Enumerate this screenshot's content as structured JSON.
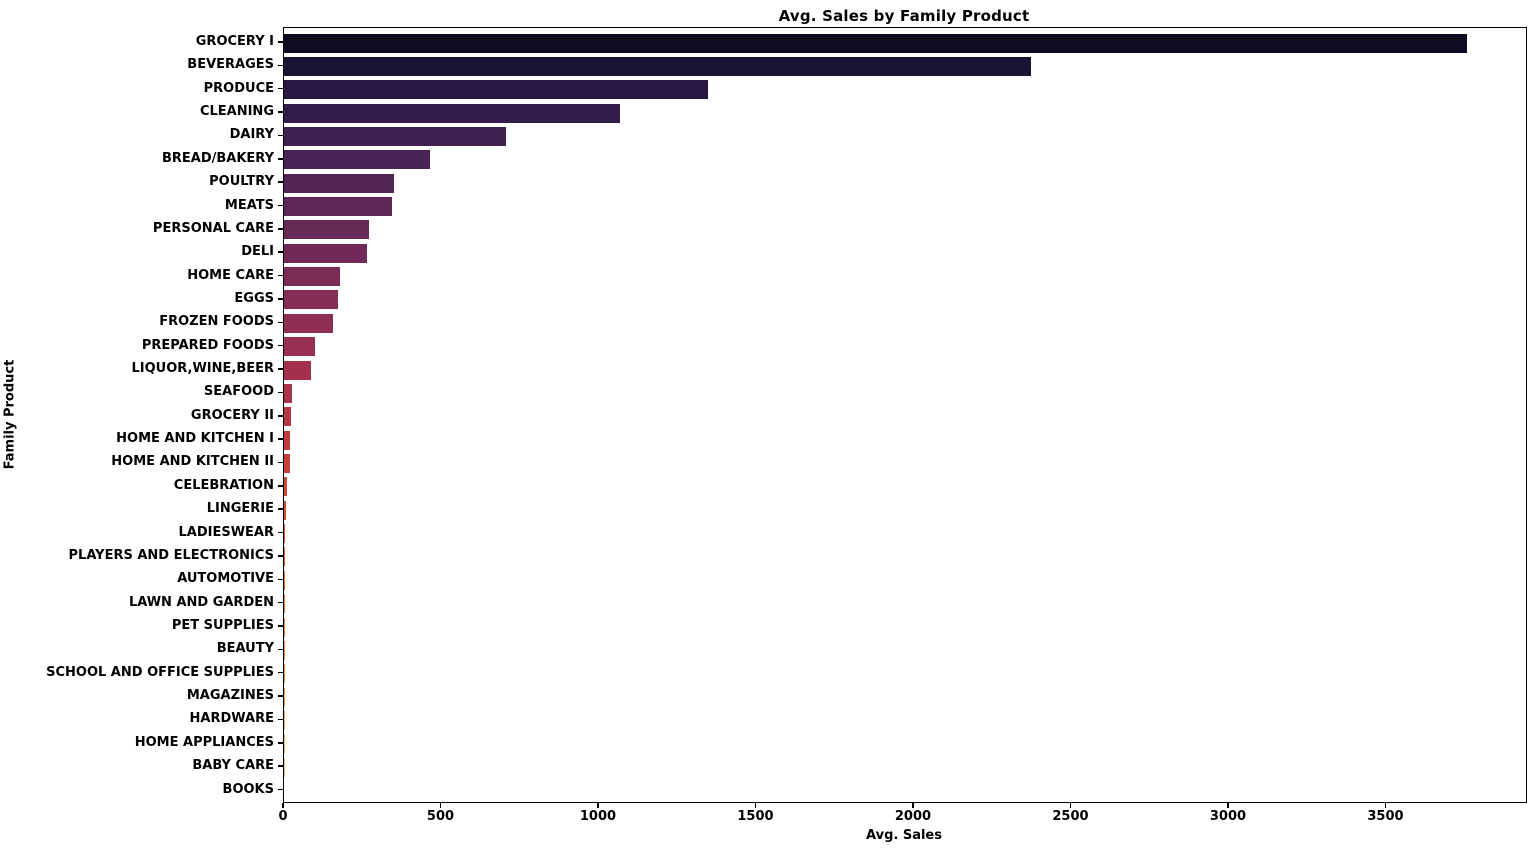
{
  "chart_data": {
    "type": "bar",
    "orientation": "horizontal",
    "title": "Avg. Sales by Family Product",
    "xlabel": "Avg. Sales",
    "ylabel": "Family Product",
    "xlim": [
      0,
      3943
    ],
    "x_ticks": [
      0,
      500,
      1000,
      1500,
      2000,
      2500,
      3000,
      3500
    ],
    "grid": false,
    "legend": "none",
    "categories": [
      "GROCERY I",
      "BEVERAGES",
      "PRODUCE",
      "CLEANING",
      "DAIRY",
      "BREAD/BAKERY",
      "POULTRY",
      "MEATS",
      "PERSONAL CARE",
      "DELI",
      "HOME CARE",
      "EGGS",
      "FROZEN FOODS",
      "PREPARED FOODS",
      "LIQUOR,WINE,BEER",
      "SEAFOOD",
      "GROCERY II",
      "HOME AND KITCHEN I",
      "HOME AND KITCHEN II",
      "CELEBRATION",
      "LINGERIE",
      "LADIESWEAR",
      "PLAYERS AND ELECTRONICS",
      "AUTOMOTIVE",
      "LAWN AND GARDEN",
      "PET SUPPLIES",
      "BEAUTY",
      "SCHOOL AND OFFICE SUPPLIES",
      "MAGAZINES",
      "HARDWARE",
      "HOME APPLIANCES",
      "BABY CARE",
      "BOOKS"
    ],
    "values": [
      3756,
      2371,
      1346,
      1067,
      705,
      463,
      349,
      343,
      270,
      265,
      178,
      171,
      156,
      98,
      86,
      25,
      22,
      20,
      18,
      9,
      5,
      4.5,
      4,
      4,
      3,
      2.5,
      2,
      1.5,
      1.2,
      1,
      0.8,
      0.4,
      0.1
    ],
    "bar_colors": [
      "#0d0c22",
      "#1b1333",
      "#281741",
      "#341c4a",
      "#3f2050",
      "#492353",
      "#532556",
      "#5d2757",
      "#672957",
      "#712a57",
      "#7b2c56",
      "#852d55",
      "#8f2e53",
      "#992f50",
      "#a3314d",
      "#ad3349",
      "#b63745",
      "#bf3b40",
      "#c7413b",
      "#cf4836",
      "#d65133",
      "#dc5a31",
      "#e26431",
      "#e76e33",
      "#eb7837",
      "#ee823e",
      "#f18c46",
      "#f39650",
      "#f4a05b",
      "#f5aa67",
      "#f6b474",
      "#f7be82",
      "#f8c891"
    ],
    "axis_color": "#000000",
    "background_color": "#ffffff"
  }
}
